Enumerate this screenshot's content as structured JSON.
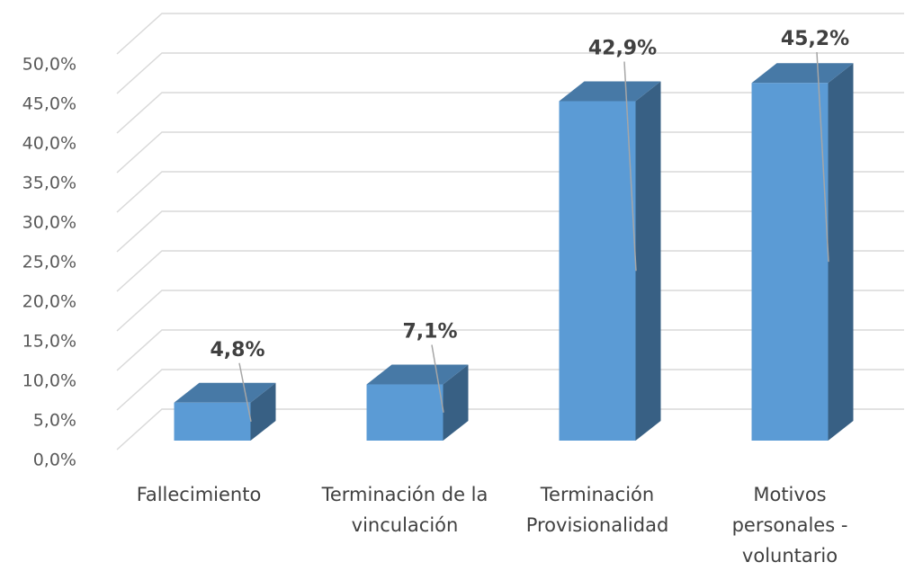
{
  "chart_data": {
    "type": "bar3d",
    "categories": [
      "Fallecimiento",
      "Terminación de la vinculación",
      "Terminación Provisionalidad",
      "Motivos personales - voluntario"
    ],
    "values": [
      4.8,
      7.1,
      42.9,
      45.2
    ],
    "value_labels": [
      "4,8%",
      "7,1%",
      "42,9%",
      "45,2%"
    ],
    "color": "#5b9bd5",
    "ylim": [
      0,
      50
    ],
    "yticks": [
      {
        "value": 0,
        "label": "0,0%"
      },
      {
        "value": 5,
        "label": "5,0%"
      },
      {
        "value": 10,
        "label": "10,0%"
      },
      {
        "value": 15,
        "label": "15,0%"
      },
      {
        "value": 20,
        "label": "20,0%"
      },
      {
        "value": 25,
        "label": "25,0%"
      },
      {
        "value": 30,
        "label": "30,0%"
      },
      {
        "value": 35,
        "label": "35,0%"
      },
      {
        "value": 40,
        "label": "40,0%"
      },
      {
        "value": 45,
        "label": "45,0%"
      },
      {
        "value": 50,
        "label": "50,0%"
      }
    ],
    "grid": true
  }
}
